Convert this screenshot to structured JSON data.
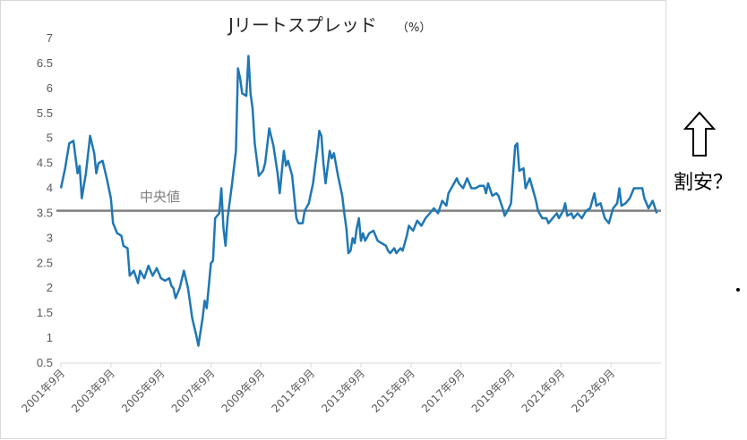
{
  "chart_data": {
    "type": "line",
    "title": "Jリートスプレッド",
    "title_unit": "（%）",
    "xlabel": "",
    "ylabel": "",
    "ylim": [
      0.5,
      7
    ],
    "yticks": [
      "0.5",
      "1",
      "1.5",
      "2",
      "2.5",
      "3",
      "3.5",
      "4",
      "4.5",
      "5",
      "5.5",
      "6",
      "6.5",
      "7"
    ],
    "xticks": [
      "2001年9月",
      "2003年9月",
      "2005年9月",
      "2007年9月",
      "2009年9月",
      "2011年9月",
      "2013年9月",
      "2015年9月",
      "2017年9月",
      "2019年9月",
      "2021年9月",
      "2023年9月"
    ],
    "x_start": "2001-09",
    "x_end": "2025-09",
    "grid": false,
    "series": [
      {
        "color": "#1f77b4",
        "points": [
          [
            "2001-09",
            4.0
          ],
          [
            "2001-11",
            4.4
          ],
          [
            "2002-01",
            4.9
          ],
          [
            "2002-03",
            4.95
          ],
          [
            "2002-05",
            4.3
          ],
          [
            "2002-06",
            4.45
          ],
          [
            "2002-07",
            3.8
          ],
          [
            "2002-09",
            4.3
          ],
          [
            "2002-11",
            5.05
          ],
          [
            "2003-01",
            4.7
          ],
          [
            "2003-02",
            4.3
          ],
          [
            "2003-03",
            4.5
          ],
          [
            "2003-05",
            4.55
          ],
          [
            "2003-07",
            4.2
          ],
          [
            "2003-09",
            3.8
          ],
          [
            "2003-10",
            3.3
          ],
          [
            "2003-12",
            3.1
          ],
          [
            "2004-02",
            3.05
          ],
          [
            "2004-03",
            2.85
          ],
          [
            "2004-05",
            2.8
          ],
          [
            "2004-06",
            2.25
          ],
          [
            "2004-08",
            2.35
          ],
          [
            "2004-10",
            2.1
          ],
          [
            "2004-11",
            2.35
          ],
          [
            "2005-01",
            2.2
          ],
          [
            "2005-03",
            2.45
          ],
          [
            "2005-05",
            2.25
          ],
          [
            "2005-07",
            2.4
          ],
          [
            "2005-09",
            2.2
          ],
          [
            "2005-11",
            2.15
          ],
          [
            "2006-01",
            2.2
          ],
          [
            "2006-02",
            2.05
          ],
          [
            "2006-03",
            2.0
          ],
          [
            "2006-04",
            1.8
          ],
          [
            "2006-06",
            2.0
          ],
          [
            "2006-08",
            2.35
          ],
          [
            "2006-10",
            2.0
          ],
          [
            "2006-12",
            1.4
          ],
          [
            "2007-02",
            1.05
          ],
          [
            "2007-03",
            0.85
          ],
          [
            "2007-05",
            1.4
          ],
          [
            "2007-06",
            1.75
          ],
          [
            "2007-07",
            1.6
          ],
          [
            "2007-09",
            2.5
          ],
          [
            "2007-10",
            2.55
          ],
          [
            "2007-11",
            3.4
          ],
          [
            "2008-01",
            3.5
          ],
          [
            "2008-02",
            4.0
          ],
          [
            "2008-03",
            3.2
          ],
          [
            "2008-04",
            2.85
          ],
          [
            "2008-05",
            3.4
          ],
          [
            "2008-07",
            4.05
          ],
          [
            "2008-09",
            4.75
          ],
          [
            "2008-10",
            6.4
          ],
          [
            "2008-11",
            6.2
          ],
          [
            "2008-12",
            5.9
          ],
          [
            "2009-02",
            5.85
          ],
          [
            "2009-03",
            6.65
          ],
          [
            "2009-04",
            5.9
          ],
          [
            "2009-05",
            5.6
          ],
          [
            "2009-06",
            4.9
          ],
          [
            "2009-08",
            4.25
          ],
          [
            "2009-10",
            4.35
          ],
          [
            "2009-11",
            4.5
          ],
          [
            "2010-01",
            5.2
          ],
          [
            "2010-03",
            4.85
          ],
          [
            "2010-05",
            4.3
          ],
          [
            "2010-06",
            3.9
          ],
          [
            "2010-08",
            4.75
          ],
          [
            "2010-09",
            4.45
          ],
          [
            "2010-10",
            4.55
          ],
          [
            "2010-12",
            4.25
          ],
          [
            "2011-02",
            3.4
          ],
          [
            "2011-03",
            3.3
          ],
          [
            "2011-05",
            3.3
          ],
          [
            "2011-06",
            3.55
          ],
          [
            "2011-08",
            3.7
          ],
          [
            "2011-10",
            4.1
          ],
          [
            "2011-12",
            4.75
          ],
          [
            "2012-01",
            5.15
          ],
          [
            "2012-02",
            5.05
          ],
          [
            "2012-03",
            4.5
          ],
          [
            "2012-04",
            4.1
          ],
          [
            "2012-06",
            4.75
          ],
          [
            "2012-07",
            4.6
          ],
          [
            "2012-08",
            4.7
          ],
          [
            "2012-10",
            4.25
          ],
          [
            "2012-12",
            3.85
          ],
          [
            "2013-01",
            3.5
          ],
          [
            "2013-02",
            3.2
          ],
          [
            "2013-03",
            2.7
          ],
          [
            "2013-04",
            2.75
          ],
          [
            "2013-05",
            3.0
          ],
          [
            "2013-06",
            2.9
          ],
          [
            "2013-07",
            3.2
          ],
          [
            "2013-08",
            3.4
          ],
          [
            "2013-09",
            2.95
          ],
          [
            "2013-10",
            3.1
          ],
          [
            "2013-11",
            2.95
          ],
          [
            "2014-01",
            3.1
          ],
          [
            "2014-03",
            3.15
          ],
          [
            "2014-05",
            2.95
          ],
          [
            "2014-07",
            2.9
          ],
          [
            "2014-09",
            2.85
          ],
          [
            "2014-10",
            2.75
          ],
          [
            "2014-11",
            2.7
          ],
          [
            "2015-01",
            2.8
          ],
          [
            "2015-02",
            2.7
          ],
          [
            "2015-04",
            2.8
          ],
          [
            "2015-05",
            2.75
          ],
          [
            "2015-06",
            2.9
          ],
          [
            "2015-07",
            3.05
          ],
          [
            "2015-08",
            3.25
          ],
          [
            "2015-10",
            3.15
          ],
          [
            "2015-12",
            3.35
          ],
          [
            "2016-02",
            3.25
          ],
          [
            "2016-04",
            3.4
          ],
          [
            "2016-06",
            3.5
          ],
          [
            "2016-08",
            3.6
          ],
          [
            "2016-10",
            3.5
          ],
          [
            "2016-12",
            3.75
          ],
          [
            "2017-02",
            3.65
          ],
          [
            "2017-03",
            3.9
          ],
          [
            "2017-05",
            4.05
          ],
          [
            "2017-07",
            4.2
          ],
          [
            "2017-08",
            4.1
          ],
          [
            "2017-10",
            4.0
          ],
          [
            "2017-12",
            4.2
          ],
          [
            "2018-02",
            4.0
          ],
          [
            "2018-04",
            4.0
          ],
          [
            "2018-06",
            4.05
          ],
          [
            "2018-08",
            4.05
          ],
          [
            "2018-09",
            3.9
          ],
          [
            "2018-10",
            4.1
          ],
          [
            "2018-12",
            3.85
          ],
          [
            "2019-02",
            3.9
          ],
          [
            "2019-03",
            3.85
          ],
          [
            "2019-05",
            3.6
          ],
          [
            "2019-06",
            3.45
          ],
          [
            "2019-08",
            3.6
          ],
          [
            "2019-09",
            3.7
          ],
          [
            "2019-11",
            4.85
          ],
          [
            "2019-12",
            4.9
          ],
          [
            "2020-01",
            4.35
          ],
          [
            "2020-03",
            4.4
          ],
          [
            "2020-04",
            4.0
          ],
          [
            "2020-06",
            4.2
          ],
          [
            "2020-08",
            3.9
          ],
          [
            "2020-09",
            3.75
          ],
          [
            "2020-10",
            3.55
          ],
          [
            "2020-12",
            3.4
          ],
          [
            "2021-02",
            3.4
          ],
          [
            "2021-03",
            3.3
          ],
          [
            "2021-05",
            3.4
          ],
          [
            "2021-07",
            3.5
          ],
          [
            "2021-08",
            3.4
          ],
          [
            "2021-10",
            3.55
          ],
          [
            "2021-11",
            3.7
          ],
          [
            "2021-12",
            3.45
          ],
          [
            "2022-02",
            3.5
          ],
          [
            "2022-03",
            3.4
          ],
          [
            "2022-05",
            3.5
          ],
          [
            "2022-07",
            3.4
          ],
          [
            "2022-09",
            3.55
          ],
          [
            "2022-11",
            3.6
          ],
          [
            "2023-01",
            3.9
          ],
          [
            "2023-02",
            3.65
          ],
          [
            "2023-04",
            3.7
          ],
          [
            "2023-06",
            3.4
          ],
          [
            "2023-08",
            3.3
          ],
          [
            "2023-10",
            3.6
          ],
          [
            "2023-12",
            3.7
          ],
          [
            "2024-01",
            4.0
          ],
          [
            "2024-02",
            3.65
          ],
          [
            "2024-04",
            3.7
          ],
          [
            "2024-06",
            3.8
          ],
          [
            "2024-08",
            4.0
          ],
          [
            "2024-10",
            4.0
          ],
          [
            "2024-12",
            4.0
          ],
          [
            "2025-01",
            3.8
          ],
          [
            "2025-03",
            3.6
          ],
          [
            "2025-05",
            3.75
          ],
          [
            "2025-07",
            3.5
          ]
        ]
      }
    ],
    "median_line": {
      "value": 3.55,
      "label": "中央値",
      "color": "#808080"
    }
  },
  "annotation": {
    "arrow_icon": "up-arrow-icon",
    "text": "割安？"
  },
  "colors": {
    "series": "#1f77b4",
    "median": "#808080",
    "axis": "#d9d9d9"
  }
}
